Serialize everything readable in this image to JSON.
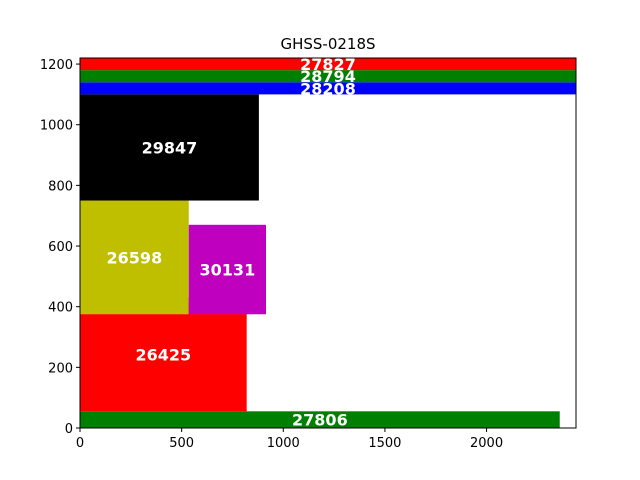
{
  "chart_data": {
    "type": "bar",
    "title": "GHSS-0218S",
    "xlim": [
      0,
      2440
    ],
    "ylim": [
      0,
      1220
    ],
    "xticks": [
      0,
      500,
      1000,
      1500,
      2000
    ],
    "yticks": [
      0,
      200,
      400,
      600,
      800,
      1000,
      1200
    ],
    "grid": false,
    "rects": [
      {
        "label": "27806",
        "x": 0,
        "y": 0,
        "w": 2360,
        "h": 55,
        "color": "#008000"
      },
      {
        "label": "26425",
        "x": 0,
        "y": 55,
        "w": 820,
        "h": 375,
        "color": "#ff0000"
      },
      {
        "label": "26598",
        "x": 0,
        "y": 375,
        "w": 535,
        "h": 375,
        "color": "#bfbf00"
      },
      {
        "label": "30131",
        "x": 535,
        "y": 375,
        "w": 380,
        "h": 295,
        "color": "#bf00bf"
      },
      {
        "label": "29847",
        "x": 0,
        "y": 750,
        "w": 880,
        "h": 350,
        "color": "#000000"
      },
      {
        "label": "28208",
        "x": 0,
        "y": 1100,
        "w": 2440,
        "h": 40,
        "color": "#0000ff"
      },
      {
        "label": "28794",
        "x": 0,
        "y": 1140,
        "w": 2440,
        "h": 40,
        "color": "#008000"
      },
      {
        "label": "27827",
        "x": 0,
        "y": 1180,
        "w": 2440,
        "h": 40,
        "color": "#ff0000"
      }
    ]
  }
}
